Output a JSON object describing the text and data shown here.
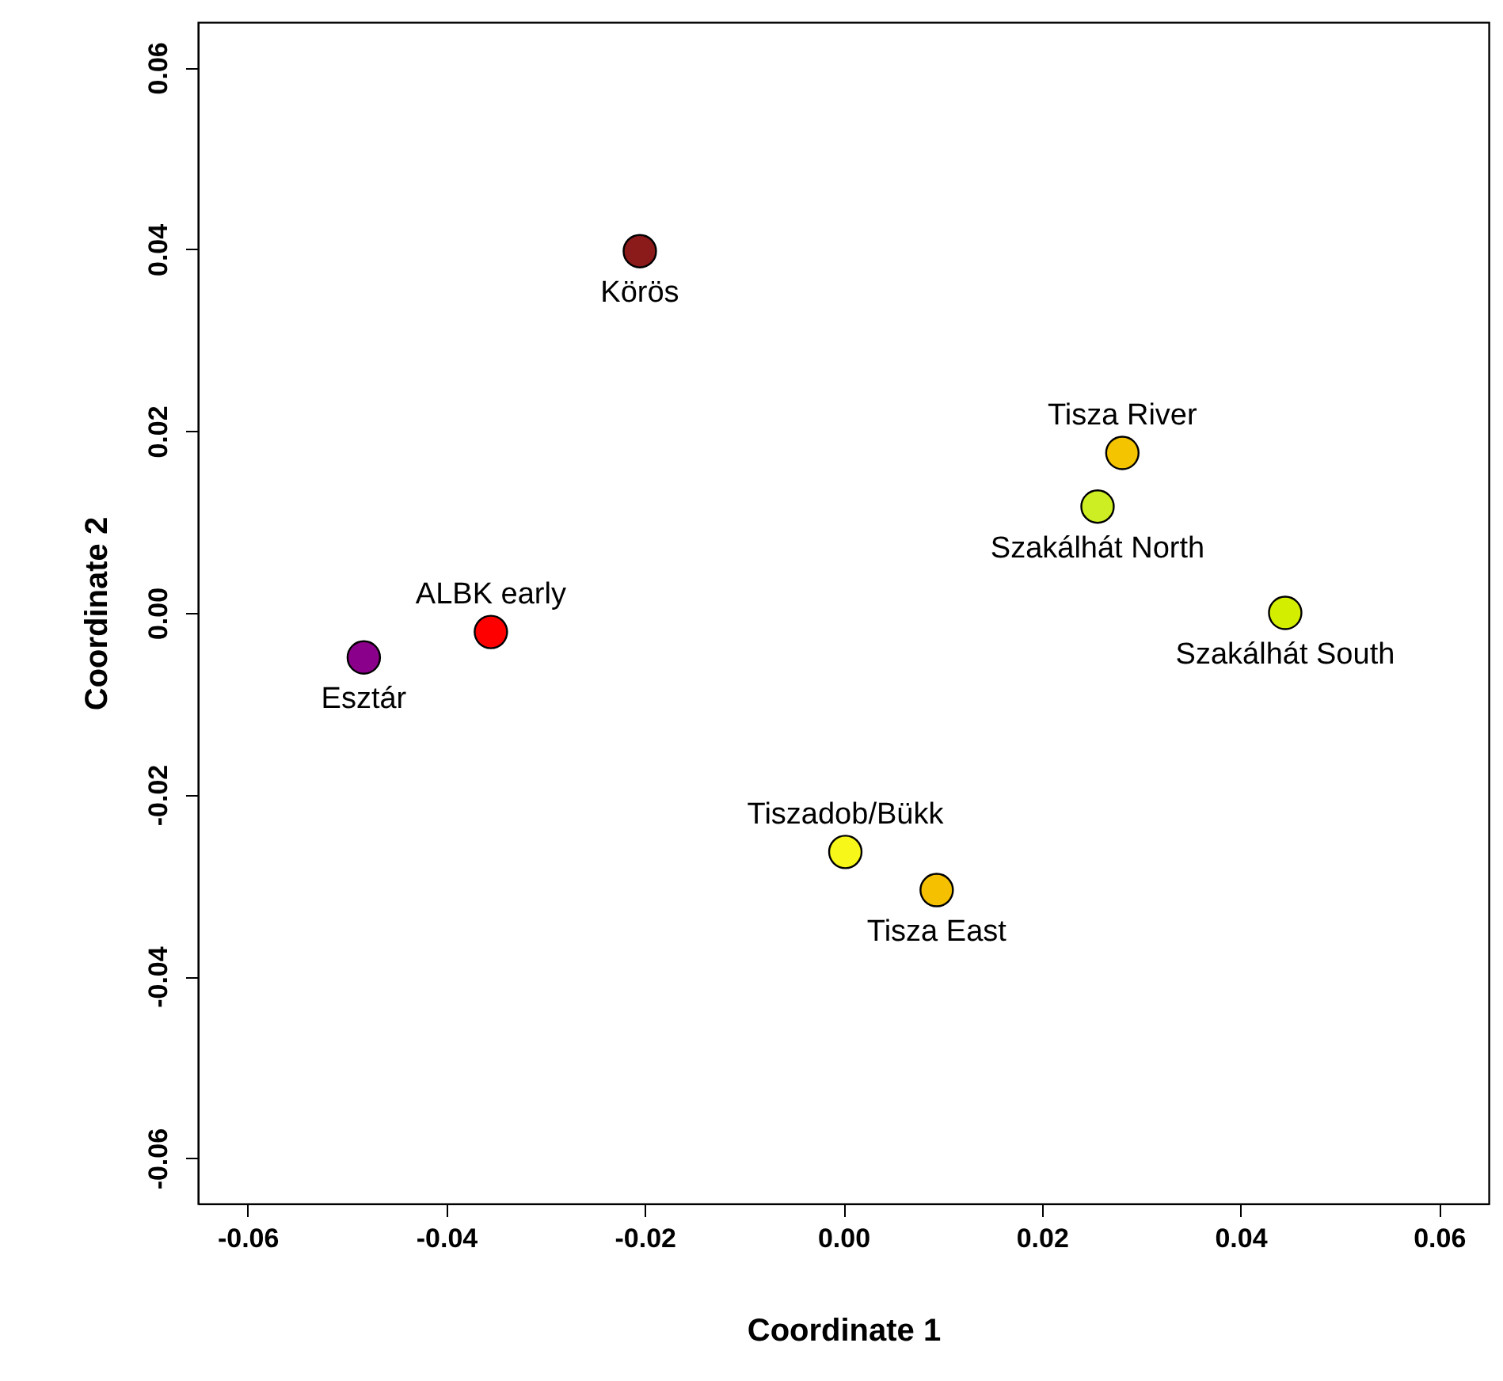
{
  "chart_data": {
    "type": "scatter",
    "xlabel": "Coordinate 1",
    "ylabel": "Coordinate 2",
    "xlim": [
      -0.065,
      0.065
    ],
    "ylim": [
      -0.065,
      0.065
    ],
    "xticks": [
      {
        "value": -0.06,
        "label": "-0.06"
      },
      {
        "value": -0.04,
        "label": "-0.04"
      },
      {
        "value": -0.02,
        "label": "-0.02"
      },
      {
        "value": 0,
        "label": "0.00"
      },
      {
        "value": 0.02,
        "label": "0.02"
      },
      {
        "value": 0.04,
        "label": "0.04"
      },
      {
        "value": 0.06,
        "label": "0.06"
      }
    ],
    "yticks": [
      {
        "value": -0.06,
        "label": "-0.06"
      },
      {
        "value": -0.04,
        "label": "-0.04"
      },
      {
        "value": -0.02,
        "label": "-0.02"
      },
      {
        "value": 0,
        "label": "0.00"
      },
      {
        "value": 0.02,
        "label": "0.02"
      },
      {
        "value": 0.04,
        "label": "0.04"
      },
      {
        "value": 0.06,
        "label": "0.06"
      }
    ],
    "grid": false,
    "marker": "circle",
    "series": [
      {
        "name": "Körös",
        "color": "#8b1a1a",
        "x": [
          -0.0205
        ],
        "values": [
          0.0398
        ]
      },
      {
        "name": "Tisza River",
        "color": "#f5c400",
        "x": [
          0.0281
        ],
        "values": [
          0.0176
        ]
      },
      {
        "name": "Szakálhát North",
        "color": "#ccee22",
        "x": [
          0.0256
        ],
        "values": [
          0.0117
        ]
      },
      {
        "name": "Szakálhát South",
        "color": "#d4ee00",
        "x": [
          0.0445
        ],
        "values": [
          0.0
        ]
      },
      {
        "name": "ALBK early",
        "color": "#ff0000",
        "x": [
          -0.0355
        ],
        "values": [
          -0.0021
        ]
      },
      {
        "name": "Esztár",
        "color": "#8b008b",
        "x": [
          -0.0483
        ],
        "values": [
          -0.0049
        ]
      },
      {
        "name": "Tiszadob/Bükk",
        "color": "#f7f71a",
        "x": [
          0.0002
        ],
        "values": [
          -0.0263
        ]
      },
      {
        "name": "Tisza East",
        "color": "#f5c000",
        "x": [
          0.0094
        ],
        "values": [
          -0.0305
        ]
      }
    ]
  }
}
